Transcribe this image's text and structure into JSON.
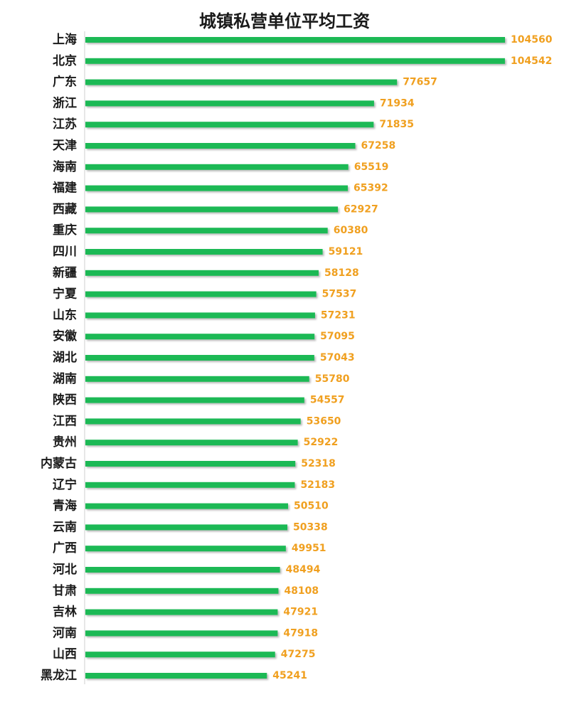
{
  "chart_data": {
    "type": "bar",
    "orientation": "horizontal",
    "title": "城镇私营单位平均工资",
    "xlabel": "",
    "ylabel": "",
    "xlim": [
      0,
      106000
    ],
    "grid": false,
    "legend": "none",
    "bar_color": "#1db954",
    "label_color": "#f0a020",
    "categories": [
      "上海",
      "北京",
      "广东",
      "浙江",
      "江苏",
      "天津",
      "海南",
      "福建",
      "西藏",
      "重庆",
      "四川",
      "新疆",
      "宁夏",
      "山东",
      "安徽",
      "湖北",
      "湖南",
      "陕西",
      "江西",
      "贵州",
      "内蒙古",
      "辽宁",
      "青海",
      "云南",
      "广西",
      "河北",
      "甘肃",
      "吉林",
      "河南",
      "山西",
      "黑龙江"
    ],
    "values": [
      104560,
      104542,
      77657,
      71934,
      71835,
      67258,
      65519,
      65392,
      62927,
      60380,
      59121,
      58128,
      57537,
      57231,
      57095,
      57043,
      55780,
      54557,
      53650,
      52922,
      52318,
      52183,
      50510,
      50338,
      49951,
      48494,
      48108,
      47921,
      47918,
      47275,
      45241
    ]
  }
}
